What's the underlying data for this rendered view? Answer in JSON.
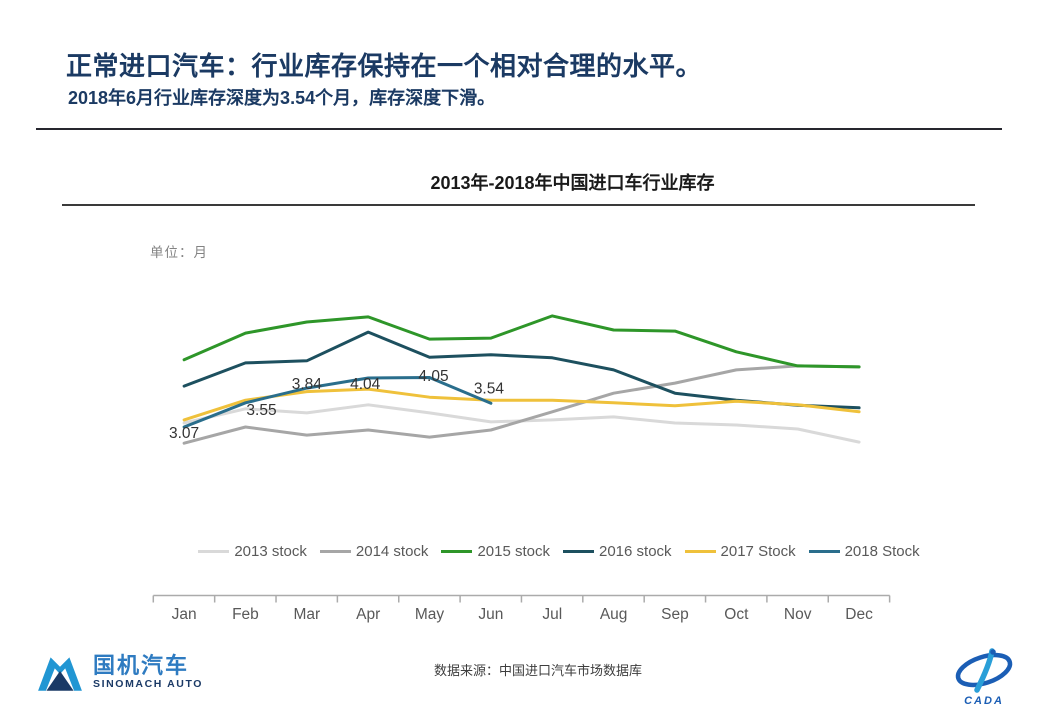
{
  "header": {
    "title": "正常进口汽车：行业库存保持在一个相对合理的水平。",
    "subtitle": "2018年6月行业库存深度为3.54个月，库存深度下滑。"
  },
  "chart": {
    "title": "2013年-2018年中国进口车行业库存",
    "unit_label": "单位：月",
    "source_label": "数据来源：中国进口汽车市场数据库"
  },
  "chart_data": {
    "type": "line",
    "title": "2013年-2018年中国进口车行业库存",
    "ylabel": "单位：月",
    "ylim": [
      2.5,
      5.6
    ],
    "grid": false,
    "y_axis_visible": false,
    "legend_position": "bottom",
    "categories": [
      "Jan",
      "Feb",
      "Mar",
      "Apr",
      "May",
      "Jun",
      "Jul",
      "Aug",
      "Sep",
      "Oct",
      "Nov",
      "Dec"
    ],
    "series": [
      {
        "name": "2013 stock",
        "color": "#d9d9d9",
        "values": [
          3.15,
          3.43,
          3.35,
          3.51,
          3.35,
          3.17,
          3.21,
          3.27,
          3.15,
          3.11,
          3.03,
          2.77
        ]
      },
      {
        "name": "2014 stock",
        "color": "#a6a6a6",
        "values": [
          2.75,
          3.07,
          2.91,
          3.01,
          2.87,
          3.01,
          3.37,
          3.74,
          3.94,
          4.2,
          4.28,
          4.26
        ]
      },
      {
        "name": "2015 stock",
        "color": "#2e9629",
        "values": [
          4.4,
          4.93,
          5.15,
          5.25,
          4.81,
          4.83,
          5.27,
          4.99,
          4.97,
          4.56,
          4.28,
          4.26
        ]
      },
      {
        "name": "2016 stock",
        "color": "#1d505f",
        "values": [
          3.88,
          4.34,
          4.38,
          4.95,
          4.45,
          4.5,
          4.44,
          4.2,
          3.74,
          3.6,
          3.5,
          3.45
        ]
      },
      {
        "name": "2017 Stock",
        "color": "#efc13b",
        "values": [
          3.21,
          3.6,
          3.77,
          3.82,
          3.66,
          3.6,
          3.6,
          3.55,
          3.49,
          3.58,
          3.51,
          3.37
        ]
      },
      {
        "name": "2018 Stock",
        "color": "#2a6e8c",
        "values": [
          3.07,
          3.55,
          3.84,
          4.04,
          4.05,
          3.54
        ]
      }
    ],
    "data_labels": {
      "series": "2018 Stock",
      "values": [
        "3.07",
        "3.55",
        "3.84",
        "4.04",
        "4.05",
        "3.54"
      ]
    }
  },
  "footer": {
    "logo_left": {
      "name": "国机汽车",
      "subname": "SINOMACH AUTO"
    },
    "logo_right": {
      "name": "CADA"
    }
  },
  "colors": {
    "header_text": "#1b3a63",
    "axis_line": "#ababab",
    "axis_text": "#595959",
    "data_label_text": "#333333",
    "logo_blue": "#1b5eb5",
    "logo_light_blue": "#2a9fd8",
    "logo_navy": "#1b3a66"
  }
}
